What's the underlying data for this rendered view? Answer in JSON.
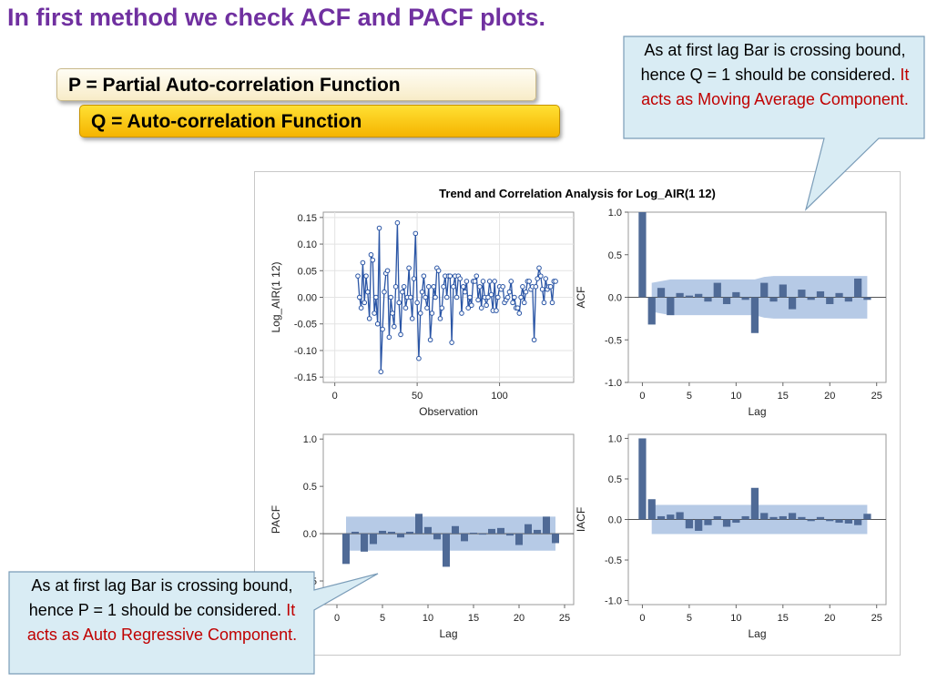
{
  "slide": {
    "title": "In first method we check ACF and PACF plots.",
    "p_definition": "P  = Partial Auto-correlation Function",
    "q_definition": "Q = Auto-correlation Function"
  },
  "callouts": {
    "acf": {
      "black": "As at first lag Bar is crossing bound, hence Q = 1 should be considered.",
      "red": "It acts as Moving Average Component."
    },
    "pacf": {
      "black": "As at first lag Bar is crossing bound, hence P = 1 should be considered.",
      "red": "It acts as Auto Regressive Component."
    }
  },
  "colors": {
    "title": "#7030a0",
    "bar": "#4f6a96",
    "band": "#a9c1e2",
    "line": "#2a55a5",
    "red": "#c00000"
  },
  "chart_data": {
    "title": "Trend and Correlation Analysis for Log_AIR(1 12)",
    "panels": [
      {
        "id": "series",
        "type": "line",
        "xlabel": "Observation",
        "ylabel": "Log_AIR(1 12)",
        "xlim": [
          -7,
          145
        ],
        "ylim": [
          -0.16,
          0.16
        ],
        "xticks": [
          0,
          50,
          100
        ],
        "yticks": [
          -0.15,
          -0.1,
          -0.05,
          0.0,
          0.05,
          0.1,
          0.15
        ],
        "ytick_labels": [
          "-0.15",
          "-0.10",
          "-0.05",
          "0.00",
          "0.05",
          "0.10",
          "0.15"
        ],
        "x_start": 14,
        "values": [
          0.04,
          0.0,
          -0.02,
          0.065,
          -0.01,
          0.04,
          0.01,
          -0.04,
          0.08,
          0.07,
          -0.03,
          0.0,
          -0.05,
          0.13,
          -0.14,
          -0.06,
          0.01,
          0.045,
          0.05,
          -0.075,
          0.0,
          -0.03,
          -0.055,
          0.02,
          0.14,
          -0.01,
          -0.07,
          0.01,
          0.02,
          -0.02,
          0.0,
          0.055,
          0.0,
          -0.04,
          0.035,
          0.12,
          -0.01,
          -0.115,
          -0.03,
          0.01,
          0.04,
          0.0,
          -0.02,
          0.02,
          -0.08,
          -0.03,
          0.02,
          0.0,
          0.055,
          0.05,
          -0.04,
          -0.02,
          0.02,
          0.04,
          0.0,
          0.04,
          0.04,
          -0.085,
          0.02,
          0.04,
          0.0,
          0.04,
          0.035,
          -0.03,
          0.02,
          0.01,
          0.03,
          -0.02,
          0.0,
          -0.015,
          0.03,
          0.03,
          0.04,
          -0.005,
          0.02,
          -0.02,
          0.03,
          0.0,
          -0.015,
          0.0,
          0.03,
          0.005,
          -0.025,
          0.03,
          -0.025,
          0.0,
          0.02,
          0.015,
          0.02,
          -0.01,
          -0.005,
          0.0,
          0.01,
          0.03,
          -0.01,
          0.0,
          -0.02,
          -0.02,
          -0.03,
          0.0,
          0.02,
          -0.01,
          0.01,
          0.03,
          0.03,
          0.015,
          0.02,
          -0.08,
          0.02,
          0.035,
          0.055,
          0.04,
          0.015,
          -0.01,
          0.035,
          0.015,
          0.02,
          0.02,
          -0.01,
          0.03,
          0.03
        ]
      },
      {
        "id": "acf",
        "type": "bar",
        "xlabel": "Lag",
        "ylabel": "ACF",
        "xlim": [
          -1.5,
          26
        ],
        "ylim": [
          -1.0,
          1.0
        ],
        "xticks": [
          0,
          5,
          10,
          15,
          20,
          25
        ],
        "yticks": [
          -1.0,
          -0.5,
          0.0,
          0.5,
          1.0
        ],
        "ytick_labels": [
          "-1.0",
          "-0.5",
          "0.0",
          "0.5",
          "1.0"
        ],
        "lags": [
          0,
          1,
          2,
          3,
          4,
          5,
          6,
          7,
          8,
          9,
          10,
          11,
          12,
          13,
          14,
          15,
          16,
          17,
          18,
          19,
          20,
          21,
          22,
          23,
          24
        ],
        "values": [
          1.0,
          -0.32,
          0.11,
          -0.21,
          0.05,
          0.02,
          0.04,
          -0.05,
          0.17,
          -0.08,
          0.06,
          -0.03,
          -0.42,
          0.17,
          -0.05,
          0.15,
          -0.14,
          0.09,
          -0.03,
          0.07,
          -0.08,
          0.05,
          -0.05,
          0.22,
          -0.03
        ],
        "confidence_band": {
          "lags": [
            1,
            2,
            3,
            4,
            5,
            6,
            7,
            8,
            9,
            10,
            11,
            12,
            13,
            14,
            15,
            16,
            17,
            18,
            19,
            20,
            21,
            22,
            23,
            24
          ],
          "upper": [
            0.17,
            0.19,
            0.21,
            0.21,
            0.21,
            0.21,
            0.21,
            0.21,
            0.21,
            0.21,
            0.21,
            0.21,
            0.24,
            0.25,
            0.25,
            0.25,
            0.25,
            0.25,
            0.25,
            0.25,
            0.25,
            0.25,
            0.25,
            0.25
          ]
        }
      },
      {
        "id": "pacf",
        "type": "bar",
        "xlabel": "Lag",
        "ylabel": "PACF",
        "xlim": [
          -1.5,
          26
        ],
        "ylim": [
          -0.75,
          1.05
        ],
        "xticks": [
          0,
          5,
          10,
          15,
          20,
          25
        ],
        "yticks": [
          -0.5,
          0.0,
          0.5,
          1.0
        ],
        "ytick_labels": [
          "-0.5",
          "0.0",
          "0.5",
          "1.0"
        ],
        "lags": [
          1,
          2,
          3,
          4,
          5,
          6,
          7,
          8,
          9,
          10,
          11,
          12,
          13,
          14,
          15,
          16,
          17,
          18,
          19,
          20,
          21,
          22,
          23,
          24
        ],
        "values": [
          -0.32,
          0.02,
          -0.19,
          -0.11,
          0.03,
          0.02,
          -0.04,
          0.02,
          0.21,
          0.07,
          -0.06,
          -0.35,
          0.08,
          -0.08,
          0.01,
          -0.01,
          0.05,
          0.06,
          -0.02,
          -0.12,
          0.1,
          0.04,
          0.18,
          -0.1
        ],
        "confidence_band": {
          "lags": [
            1,
            24
          ],
          "upper": [
            0.18,
            0.18
          ]
        }
      },
      {
        "id": "iacf",
        "type": "bar",
        "xlabel": "Lag",
        "ylabel": "IACF",
        "xlim": [
          -1.5,
          26
        ],
        "ylim": [
          -1.05,
          1.05
        ],
        "xticks": [
          0,
          5,
          10,
          15,
          20,
          25
        ],
        "yticks": [
          -1.0,
          -0.5,
          0.0,
          0.5,
          1.0
        ],
        "ytick_labels": [
          "-1.0",
          "-0.5",
          "0.0",
          "0.5",
          "1.0"
        ],
        "lags": [
          0,
          1,
          2,
          3,
          4,
          5,
          6,
          7,
          8,
          9,
          10,
          11,
          12,
          13,
          14,
          15,
          16,
          17,
          18,
          19,
          20,
          21,
          22,
          23,
          24
        ],
        "values": [
          1.0,
          0.25,
          0.04,
          0.06,
          0.09,
          -0.11,
          -0.14,
          -0.07,
          0.04,
          -0.09,
          -0.04,
          0.04,
          0.39,
          0.08,
          0.03,
          0.04,
          0.08,
          0.03,
          -0.02,
          0.03,
          -0.02,
          -0.04,
          -0.05,
          -0.07,
          0.07
        ],
        "confidence_band": {
          "lags": [
            1,
            24
          ],
          "upper": [
            0.18,
            0.18
          ]
        }
      }
    ]
  }
}
